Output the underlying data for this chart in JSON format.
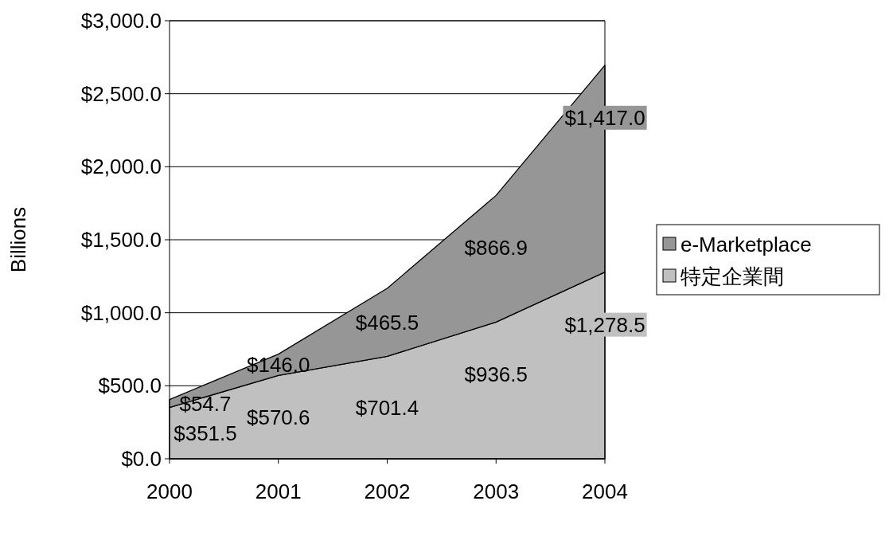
{
  "chart_data": {
    "type": "area",
    "stacked": true,
    "ylabel": "Billions",
    "categories": [
      "2000",
      "2001",
      "2002",
      "2003",
      "2004"
    ],
    "series": [
      {
        "name": "特定企業間",
        "color": "#c0c0c0",
        "values": [
          351.5,
          570.6,
          701.4,
          936.5,
          1278.5
        ],
        "value_labels": [
          "$351.5",
          "$570.6",
          "$701.4",
          "$936.5",
          "$1,278.5"
        ]
      },
      {
        "name": "e-Marketplace",
        "color": "#969696",
        "values": [
          54.7,
          146.0,
          465.5,
          866.9,
          1417.0
        ],
        "value_labels": [
          "$54.7",
          "$146.0",
          "$465.5",
          "$866.9",
          "$1,417.0"
        ]
      }
    ],
    "ylim": [
      0,
      3000
    ],
    "yticks": [
      {
        "value": 0,
        "label": "$0.0"
      },
      {
        "value": 500,
        "label": "$500.0"
      },
      {
        "value": 1000,
        "label": "$1,000.0"
      },
      {
        "value": 1500,
        "label": "$1,500.0"
      },
      {
        "value": 2000,
        "label": "$2,000.0"
      },
      {
        "value": 2500,
        "label": "$2,500.0"
      },
      {
        "value": 3000,
        "label": "$3,000.0"
      }
    ],
    "grid": "y",
    "legend": "right"
  }
}
